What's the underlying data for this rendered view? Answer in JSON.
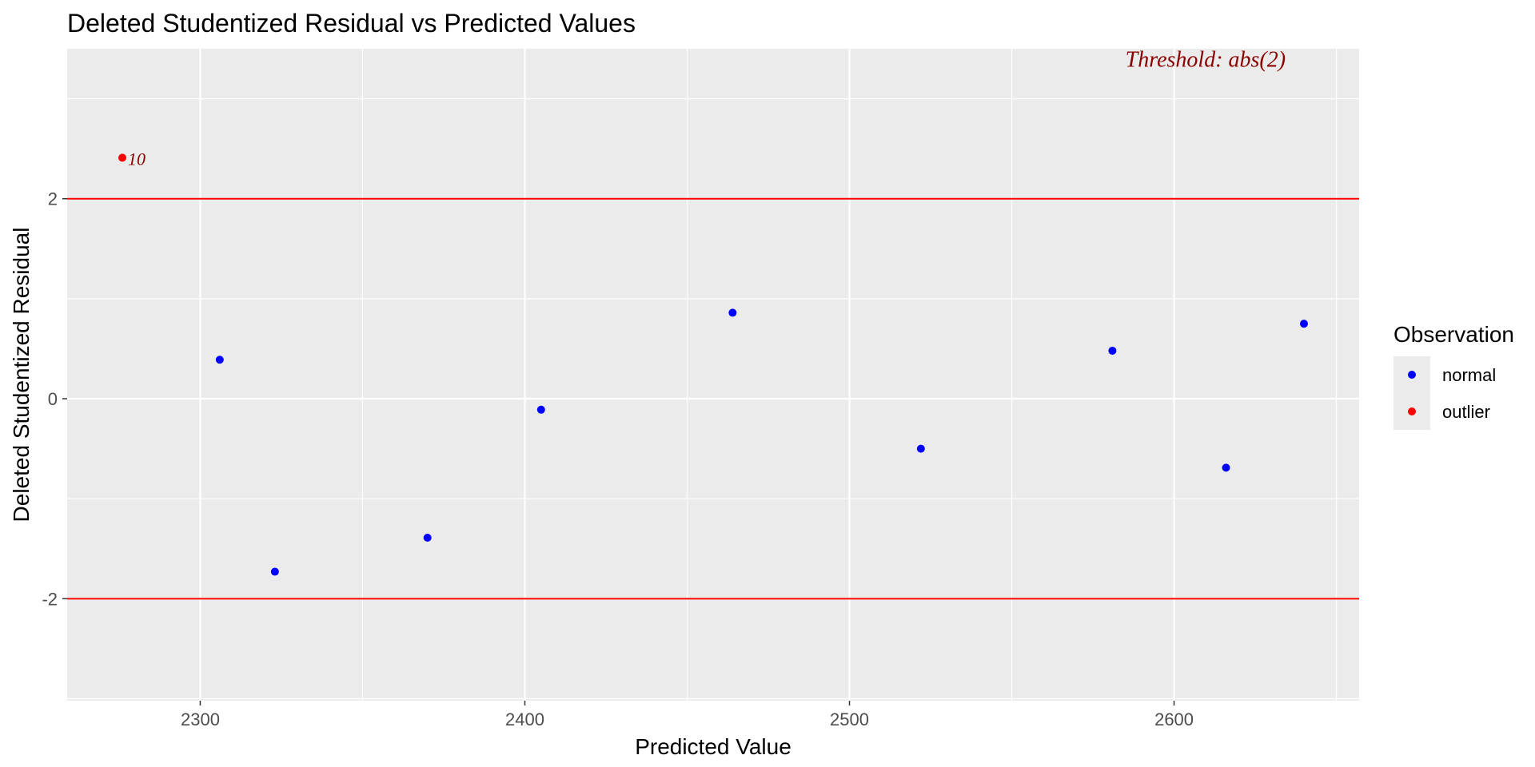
{
  "chart_data": {
    "type": "scatter",
    "title": "Deleted Studentized Residual vs Predicted Values",
    "xlabel": "Predicted Value",
    "ylabel": "Deleted Studentized Residual",
    "xlim": [
      2259,
      2657
    ],
    "ylim": [
      -3.02,
      3.5
    ],
    "xticks": [
      2300,
      2400,
      2500,
      2600
    ],
    "yticks": [
      -2,
      0,
      2
    ],
    "ytick_labels": [
      "-2",
      "0",
      "2"
    ],
    "x_minor": [
      2350,
      2450,
      2550,
      2650
    ],
    "y_minor": [
      -3,
      -1,
      1,
      3
    ],
    "grid": true,
    "threshold": 2,
    "threshold_color": "#ff0000",
    "annotation": {
      "text": "Threshold: abs(2)",
      "color": "#8b0000",
      "x": 2585,
      "y": 3.4
    },
    "legend": {
      "title": "Observation",
      "position": "right",
      "entries": [
        {
          "label": "normal",
          "color": "#0000ff"
        },
        {
          "label": "outlier",
          "color": "#ff0000"
        }
      ]
    },
    "series": [
      {
        "name": "normal",
        "color": "#0000ff",
        "points": [
          {
            "x": 2306,
            "y": 0.39
          },
          {
            "x": 2323,
            "y": -1.73
          },
          {
            "x": 2370,
            "y": -1.39
          },
          {
            "x": 2405,
            "y": -0.11
          },
          {
            "x": 2464,
            "y": 0.86
          },
          {
            "x": 2522,
            "y": -0.5
          },
          {
            "x": 2581,
            "y": 0.48
          },
          {
            "x": 2616,
            "y": -0.69
          },
          {
            "x": 2640,
            "y": 0.75
          }
        ]
      },
      {
        "name": "outlier",
        "color": "#ff0000",
        "points": [
          {
            "x": 2276,
            "y": 2.41,
            "label": "10"
          }
        ]
      }
    ]
  }
}
